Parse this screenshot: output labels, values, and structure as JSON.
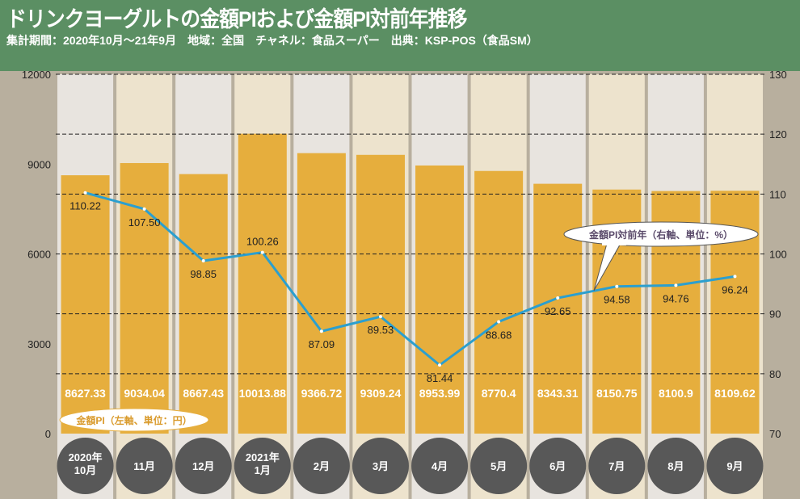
{
  "header": {
    "title": "ドリンクヨーグルトの金額PIおよび金額PI対前年推移",
    "subtitle": "集計期間：2020年10月～21年9月　地域：全国　チャネル：食品スーパー　出典：KSP-POS（食品SM）"
  },
  "chart_data": {
    "type": "bar+line",
    "categories": [
      [
        "2020年",
        "10月"
      ],
      [
        "11月"
      ],
      [
        "12月"
      ],
      [
        "2021年",
        "1月"
      ],
      [
        "2月"
      ],
      [
        "3月"
      ],
      [
        "4月"
      ],
      [
        "5月"
      ],
      [
        "6月"
      ],
      [
        "7月"
      ],
      [
        "8月"
      ],
      [
        "9月"
      ]
    ],
    "series": [
      {
        "name": "金額PI（左軸、単位：円）",
        "type": "bar",
        "axis": "left",
        "values": [
          8627.33,
          9034.04,
          8667.43,
          10013.88,
          9366.72,
          9309.24,
          8953.99,
          8770.4,
          8343.31,
          8150.75,
          8100.9,
          8109.62
        ]
      },
      {
        "name": "金額PI対前年（右軸、単位：%）",
        "type": "line",
        "axis": "right",
        "values": [
          110.22,
          107.5,
          98.85,
          100.26,
          87.09,
          89.53,
          81.44,
          88.68,
          92.65,
          94.58,
          94.76,
          96.24
        ]
      }
    ],
    "left_axis": {
      "range": [
        0,
        12000
      ],
      "ticks": [
        0,
        3000,
        6000,
        9000,
        12000
      ]
    },
    "right_axis": {
      "range": [
        70,
        130
      ],
      "ticks": [
        70,
        80,
        90,
        100,
        110,
        120,
        130
      ]
    },
    "grid": "dashed horizontal at right-axis ticks",
    "colors": {
      "bar": "#e6ae3d",
      "line": "#2b9fcf",
      "header": "#5b8f63",
      "category_circle": "#585858"
    }
  }
}
